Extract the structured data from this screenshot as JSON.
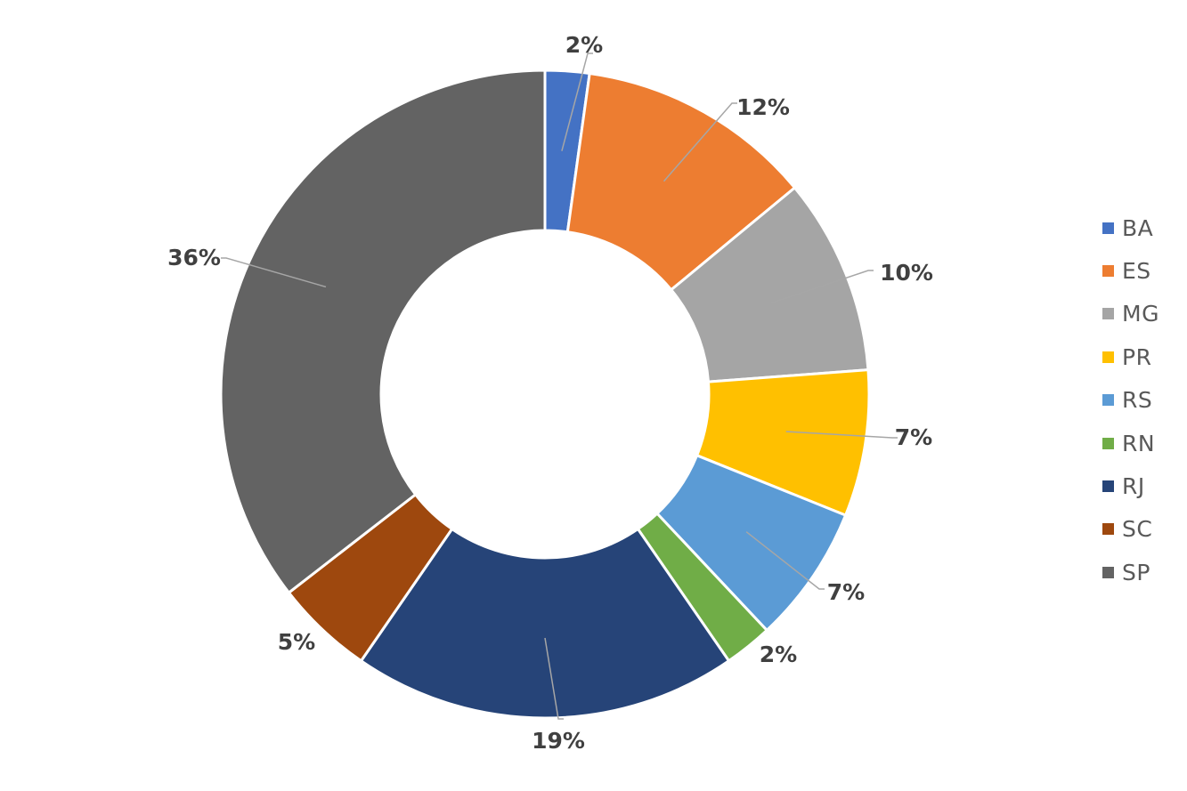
{
  "chart_data": {
    "type": "pie",
    "variant": "donut",
    "title": "",
    "categories": [
      "BA",
      "ES",
      "MG",
      "PR",
      "RS",
      "RN",
      "RJ",
      "SC",
      "SP"
    ],
    "values": [
      2.2,
      11.8,
      9.8,
      7.3,
      6.9,
      2.4,
      19.2,
      4.9,
      35.5
    ],
    "labels": [
      "2%",
      "12%",
      "10%",
      "7%",
      "7%",
      "2%",
      "19%",
      "5%",
      "36%"
    ],
    "colors": [
      "#4472C4",
      "#ED7D31",
      "#A5A5A5",
      "#FFC000",
      "#5B9BD5",
      "#70AD47",
      "#264478",
      "#9E480E",
      "#636363"
    ],
    "legend_position": "right",
    "grid": false
  }
}
